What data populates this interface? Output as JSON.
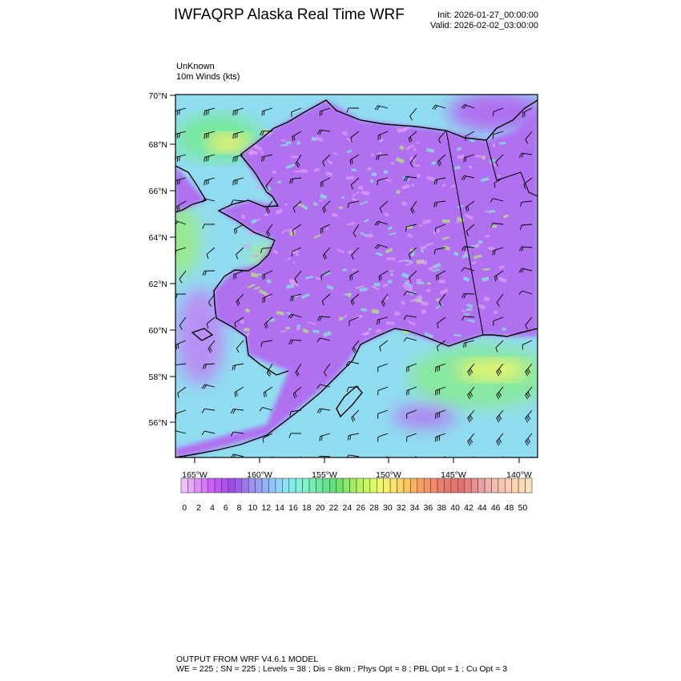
{
  "header": {
    "title": "IWFAQRP Alaska Real Time WRF",
    "init": "Init: 2026-01-27_00:00:00",
    "valid": "Valid: 2026-02-02_03:00:00"
  },
  "field": {
    "line1": "UnKnown",
    "line2": "10m Winds   (kts)"
  },
  "map": {
    "lat_labels": [
      "70°N",
      "68°N",
      "66°N",
      "64°N",
      "62°N",
      "60°N",
      "58°N",
      "56°N"
    ],
    "lon_labels": [
      "165°W",
      "160°W",
      "155°W",
      "150°W",
      "145°W",
      "140°W"
    ],
    "land_color": "#b070f0",
    "ocean_color": "#90dcf0"
  },
  "colorbar": {
    "labels": [
      "0",
      "2",
      "4",
      "6",
      "8",
      "10",
      "12",
      "14",
      "16",
      "18",
      "20",
      "22",
      "24",
      "26",
      "28",
      "30",
      "32",
      "34",
      "36",
      "38",
      "40",
      "42",
      "44",
      "46",
      "48",
      "50"
    ],
    "colors": [
      "#f0c0fa",
      "#e8a8f8",
      "#e090f8",
      "#d878f8",
      "#cc60f8",
      "#c058f4",
      "#b050f0",
      "#a048ec",
      "#9c60ec",
      "#9c78ec",
      "#9c90f0",
      "#98a0f4",
      "#90b4f8",
      "#90c4fc",
      "#90d4fc",
      "#88e4f4",
      "#80ecea",
      "#80f4da",
      "#80f4c8",
      "#78eeb4",
      "#70e8a0",
      "#68e48c",
      "#66e078",
      "#70e068",
      "#88e868",
      "#a0ee60",
      "#b4f460",
      "#c8f860",
      "#dcfa64",
      "#eef868",
      "#f8f06c",
      "#fce468",
      "#fcd464",
      "#fcc460",
      "#fcb060",
      "#f8a060",
      "#f89464",
      "#f48868",
      "#ee806a",
      "#e8786c",
      "#e4746e",
      "#e07070",
      "#e48080",
      "#e89090",
      "#eca0a0",
      "#f0aeae",
      "#f4bcb0",
      "#f8c4b0",
      "#fcccb0",
      "#fcd4b0",
      "#fcdcb4",
      "#fde0b8"
    ]
  },
  "footer": {
    "line1": "OUTPUT FROM WRF V4.6.1 MODEL",
    "line2": "WE = 225 ; SN = 225 ; Levels = 38 ; Dis = 8km ; Phys Opt = 8 ; PBL Opt = 1 ; Cu Opt = 3"
  }
}
